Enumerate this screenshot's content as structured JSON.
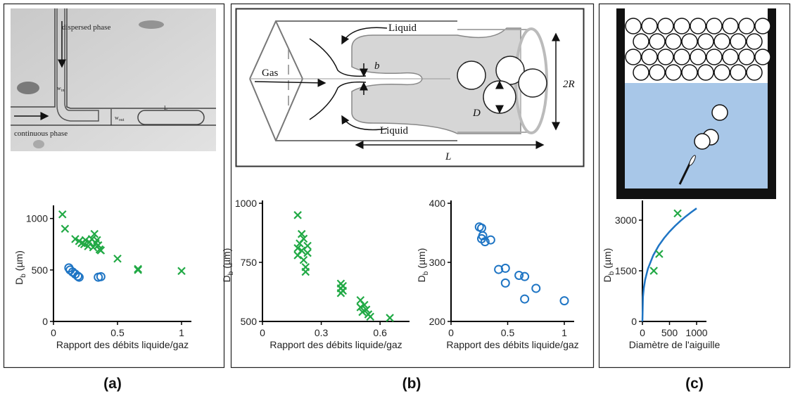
{
  "panels": [
    "(a)",
    "(b)",
    "(c)"
  ],
  "illustrations": {
    "photo": {
      "dispersed": "dispersed phase",
      "continuous": "continuous phase",
      "length": "L",
      "w_in": {
        "main": "w",
        "sub": "in"
      },
      "w_out": {
        "main": "w",
        "sub": "out"
      }
    },
    "diagram": {
      "liquid_top": "Liquid",
      "gas": "Gas",
      "b": "b",
      "radius": "2R",
      "diameter": "D",
      "liquid_bottom": "Liquid",
      "length": "L"
    }
  },
  "chart_data": [
    {
      "type": "scatter",
      "xlabel": "Rapport des débits liquide/gaz",
      "ylabel": {
        "main": "D",
        "sub": "b",
        "rest": "(µm)"
      },
      "xlim": [
        0,
        1
      ],
      "xticks": [
        0,
        0.5,
        1
      ],
      "ylim": [
        0,
        1100
      ],
      "yticks": [
        0,
        500,
        1000
      ],
      "series": [
        {
          "color": "#21a945",
          "marker": "x",
          "x": [
            0.07,
            0.09,
            0.17,
            0.2,
            0.22,
            0.24,
            0.25,
            0.27,
            0.28,
            0.3,
            0.31,
            0.32,
            0.33,
            0.34,
            0.35,
            0.36,
            0.37,
            0.5,
            0.66,
            0.66,
            1
          ],
          "values": [
            1040,
            900,
            800,
            780,
            760,
            750,
            790,
            730,
            770,
            800,
            720,
            850,
            760,
            790,
            740,
            700,
            690,
            610,
            510,
            500,
            490
          ]
        },
        {
          "color": "#1f75c4",
          "marker": "o",
          "x": [
            0.12,
            0.13,
            0.15,
            0.17,
            0.19,
            0.2,
            0.35,
            0.37
          ],
          "values": [
            520,
            500,
            480,
            460,
            440,
            430,
            430,
            435
          ]
        }
      ]
    },
    {
      "type": "scatter",
      "xlabel": "Rapport des débits liquide/gaz",
      "ylabel": {
        "main": "D",
        "sub": "b",
        "rest": "(µm)"
      },
      "xlim": [
        0,
        0.7
      ],
      "xticks": [
        0,
        0.3,
        0.6
      ],
      "ylim": [
        500,
        1000
      ],
      "yticks": [
        500,
        750,
        1000
      ],
      "series": [
        {
          "color": "#21a945",
          "marker": "x",
          "x": [
            0.18,
            0.18,
            0.18,
            0.19,
            0.2,
            0.2,
            0.21,
            0.21,
            0.22,
            0.22,
            0.23,
            0.23,
            0.4,
            0.4,
            0.4,
            0.41,
            0.41,
            0.5,
            0.5,
            0.51,
            0.52,
            0.53,
            0.54,
            0.55,
            0.65
          ],
          "values": [
            950,
            810,
            780,
            830,
            870,
            800,
            850,
            760,
            730,
            710,
            820,
            790,
            660,
            640,
            620,
            650,
            630,
            590,
            560,
            540,
            570,
            550,
            530,
            520,
            515
          ]
        }
      ]
    },
    {
      "type": "scatter",
      "xlabel": "Rapport des débits liquide/gaz",
      "ylabel": {
        "main": "D",
        "sub": "b",
        "rest": "(µm)"
      },
      "xlim": [
        0,
        1
      ],
      "xticks": [
        0,
        0.5,
        1
      ],
      "ylim": [
        200,
        400
      ],
      "yticks": [
        200,
        300,
        400
      ],
      "series": [
        {
          "color": "#1f75c4",
          "marker": "o",
          "x": [
            0.25,
            0.27,
            0.27,
            0.28,
            0.3,
            0.35,
            0.42,
            0.48,
            0.48,
            0.6,
            0.65,
            0.65,
            0.75,
            1
          ],
          "values": [
            360,
            358,
            340,
            345,
            335,
            338,
            288,
            290,
            265,
            278,
            276,
            238,
            256,
            235
          ]
        }
      ]
    },
    {
      "type": "scatter",
      "xlabel": "Diamètre de l'aiguille",
      "ylabel": {
        "main": "D",
        "sub": "b",
        "rest": "(µm)"
      },
      "xlim": [
        0,
        1000
      ],
      "xticks": [
        0,
        500,
        1000
      ],
      "ylim": [
        0,
        3500
      ],
      "yticks": [
        0,
        1500,
        3000
      ],
      "series": [
        {
          "color": "#1f75c4",
          "marker": "line",
          "x": [
            0,
            10,
            25,
            50,
            100,
            200,
            300,
            400,
            500,
            600,
            700,
            800,
            900,
            1000
          ],
          "values": [
            0,
            722,
            980,
            1234,
            1555,
            1959,
            2243,
            2469,
            2659,
            2826,
            2975,
            3110,
            3235,
            3350
          ]
        },
        {
          "color": "#21a945",
          "marker": "x",
          "x": [
            210,
            310,
            650
          ],
          "values": [
            1500,
            2000,
            3200
          ]
        }
      ]
    }
  ]
}
